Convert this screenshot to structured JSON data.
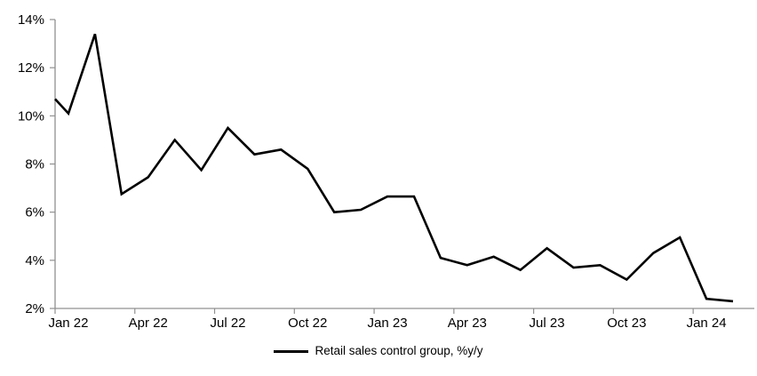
{
  "page": {
    "background_color": "#ffffff",
    "text_color": "#000000"
  },
  "chart_data": {
    "type": "line",
    "title": "",
    "xlabel": "",
    "ylabel": "",
    "x": [
      "Jan 22",
      "Feb 22",
      "Mar 22",
      "Apr 22",
      "May 22",
      "Jun 22",
      "Jul 22",
      "Aug 22",
      "Sep 22",
      "Oct 22",
      "Nov 22",
      "Dec 22",
      "Jan 23",
      "Feb 23",
      "Mar 23",
      "Apr 23",
      "May 23",
      "Jun 23",
      "Jul 23",
      "Aug 23",
      "Sep 23",
      "Oct 23",
      "Nov 23",
      "Dec 23",
      "Jan 24",
      "Feb 24"
    ],
    "series": [
      {
        "name": "Retail sales control group, %y/y",
        "color": "#000000",
        "values": [
          10.1,
          13.4,
          6.75,
          7.45,
          9.0,
          7.75,
          9.5,
          8.4,
          8.6,
          7.8,
          6.0,
          6.1,
          6.65,
          6.65,
          4.1,
          3.8,
          4.15,
          3.6,
          4.5,
          3.7,
          3.8,
          3.2,
          4.3,
          4.95,
          2.4,
          2.3
        ]
      }
    ],
    "axis_entry_value": 10.7,
    "ylim": [
      2,
      14
    ],
    "y_tick_values": [
      14,
      12,
      10,
      8,
      6,
      4,
      2
    ],
    "y_tick_labels": [
      "14%",
      "12%",
      "10%",
      "8%",
      "6%",
      "4%",
      "2%"
    ],
    "x_tick_labels": [
      "Jan 22",
      "Apr 22",
      "Jul 22",
      "Oct 22",
      "Jan 23",
      "Apr 23",
      "Jul 23",
      "Oct 23",
      "Jan 24"
    ],
    "x_ticks_every_months": 3,
    "grid": false,
    "legend_position": "bottom-center",
    "axis_color": "#909090",
    "line_color": "#000000"
  }
}
